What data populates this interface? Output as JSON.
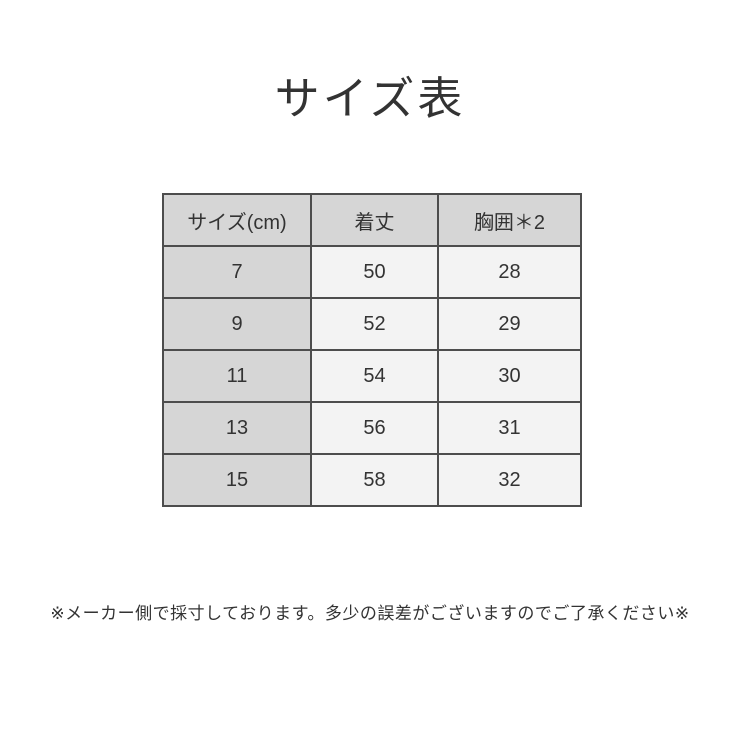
{
  "page": {
    "title": "サイズ表",
    "footnote": "※メーカー側で採寸しております。多少の誤差がございますのでご了承ください※"
  },
  "size_table": {
    "columns": [
      "サイズ(cm)",
      "着丈",
      "胸囲＊2"
    ],
    "rows": [
      [
        "7",
        "50",
        "28"
      ],
      [
        "9",
        "52",
        "29"
      ],
      [
        "11",
        "54",
        "30"
      ],
      [
        "13",
        "56",
        "31"
      ],
      [
        "15",
        "58",
        "32"
      ]
    ]
  },
  "colors": {
    "page_bg": "#ffffff",
    "header_cell_bg": "#d6d6d6",
    "data_cell_bg": "#f3f3f3",
    "table_border": "#4d4d4d",
    "text": "#333333"
  }
}
